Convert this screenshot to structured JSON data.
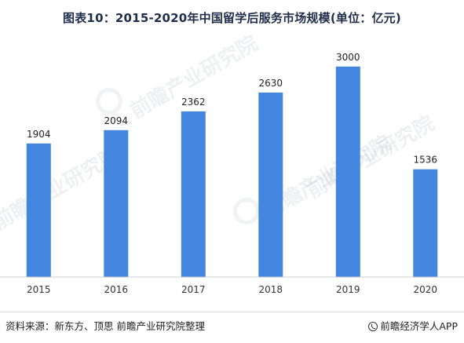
{
  "title": "图表10：2015-2020年中国留学后服务市场规模(单位：亿元)",
  "source": "资料来源：新东方、顶思 前瞻产业研究院整理",
  "brand": "前瞻经济学人APP",
  "watermark": "前瞻产业研究院",
  "colors": {
    "bar": "#4286e0",
    "axis": "#cfcfcf"
  },
  "chart_data": {
    "type": "bar",
    "title": "图表10：2015-2020年中国留学后服务市场规模(单位：亿元)",
    "xlabel": "",
    "ylabel": "",
    "categories": [
      "2015",
      "2016",
      "2017",
      "2018",
      "2019",
      "2020"
    ],
    "values": [
      1904,
      2094,
      2362,
      2630,
      3000,
      1536
    ],
    "ylim": [
      0,
      3300
    ],
    "grid": false,
    "legend": "none"
  }
}
